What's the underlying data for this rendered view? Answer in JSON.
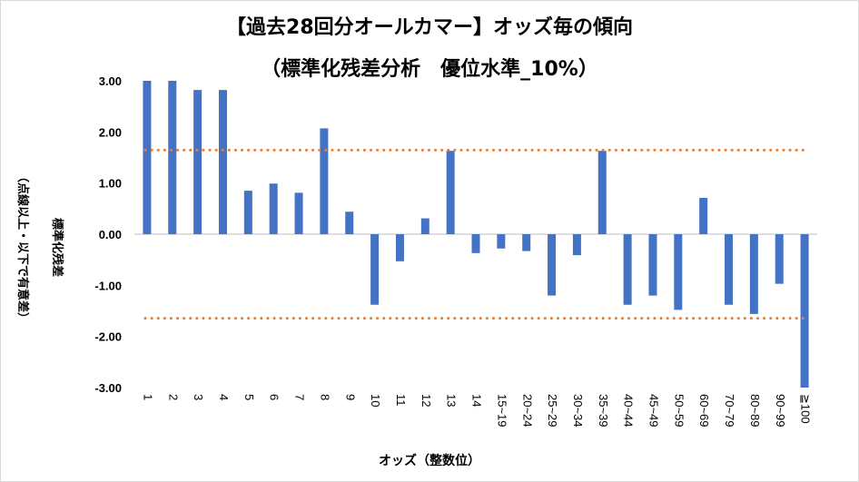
{
  "chart_data": {
    "type": "bar",
    "title": "【過去28回分オールカマー】オッズ毎の傾向",
    "subtitle": "（標準化残差分析　優位水準_10%）",
    "xlabel": "オッズ（整数位）",
    "ylabel": "標準化残差",
    "ylabel_sub": "（点線以上・以下で有意差）",
    "ylim": [
      -3.0,
      3.0
    ],
    "yticks": [
      "3.00",
      "2.00",
      "1.00",
      "0.00",
      "-1.00",
      "-2.00",
      "-3.00"
    ],
    "categories": [
      "1",
      "2",
      "3",
      "4",
      "5",
      "6",
      "7",
      "8",
      "9",
      "10",
      "11",
      "12",
      "13",
      "14",
      "15~19",
      "20~24",
      "25~29",
      "30~34",
      "35~39",
      "40~44",
      "45~49",
      "50~59",
      "60~69",
      "70~79",
      "80~89",
      "90~99",
      "≧100"
    ],
    "values": [
      3.0,
      3.0,
      2.82,
      2.82,
      0.85,
      0.99,
      0.81,
      2.07,
      0.44,
      -1.38,
      -0.53,
      0.31,
      1.63,
      -0.37,
      -0.28,
      -0.33,
      -1.2,
      -0.41,
      1.63,
      -1.38,
      -1.2,
      -1.48,
      0.71,
      -1.38,
      -1.56,
      -0.97,
      -3.0
    ],
    "thresholds": [
      1.645,
      -1.645
    ],
    "colors": {
      "bar": "#4472c4",
      "threshold": "#ed7d31",
      "axis": "#bfbfbf"
    },
    "grid": false,
    "legend": "none"
  }
}
